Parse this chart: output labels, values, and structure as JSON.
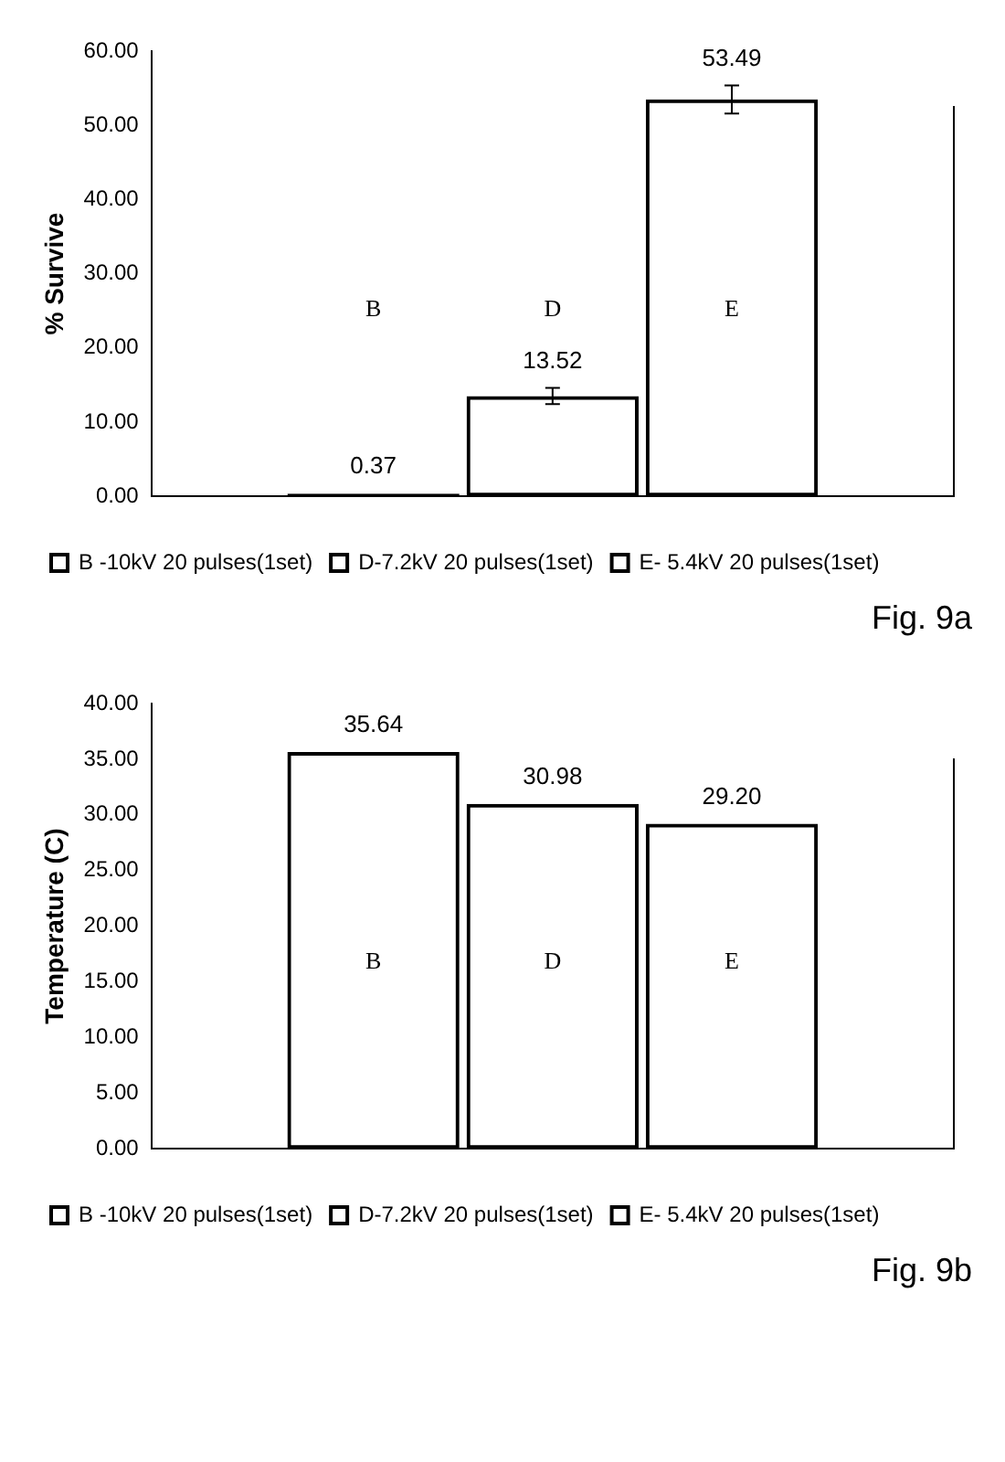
{
  "chart_data": [
    {
      "type": "bar",
      "ylabel": "% Survive",
      "categories": [
        null
      ],
      "series": [
        {
          "name": "B -10kV 20 pulses(1set)",
          "color": "#000000",
          "values": [
            0.37
          ],
          "errors": [
            null
          ],
          "value_labels": [
            "0.37"
          ]
        },
        {
          "name": "D-7.2kV 20 pulses(1set)",
          "color": "#000000",
          "values": [
            13.52
          ],
          "errors": [
            1.1
          ],
          "value_labels": [
            "13.52"
          ]
        },
        {
          "name": "E- 5.4kV 20 pulses(1set)",
          "color": "#000000",
          "values": [
            53.49
          ],
          "errors": [
            1.9
          ],
          "value_labels": [
            "53.49"
          ]
        }
      ],
      "ylim": [
        0,
        60
      ],
      "yticks": [
        {
          "value": 0,
          "label": "0.00"
        },
        {
          "value": 10,
          "label": "10.00"
        },
        {
          "value": 20,
          "label": "20.00"
        },
        {
          "value": 30,
          "label": "30.00"
        },
        {
          "value": 40,
          "label": "40.00"
        },
        {
          "value": 50,
          "label": "50.00"
        },
        {
          "value": 60,
          "label": "60.00"
        }
      ],
      "grid": false,
      "legend": "bottom",
      "annotations": [
        "B",
        "D",
        "E",
        "Fig. 9a"
      ]
    },
    {
      "type": "bar",
      "ylabel": "Temperature (C)",
      "categories": [
        null
      ],
      "series": [
        {
          "name": "B -10kV 20 pulses(1set)",
          "color": "#000000",
          "values": [
            35.64
          ],
          "value_labels": [
            "35.64"
          ]
        },
        {
          "name": "D-7.2kV 20 pulses(1set)",
          "color": "#000000",
          "values": [
            30.98
          ],
          "value_labels": [
            "30.98"
          ]
        },
        {
          "name": "E- 5.4kV 20 pulses(1set)",
          "color": "#000000",
          "values": [
            29.2
          ],
          "value_labels": [
            "29.20"
          ]
        }
      ],
      "ylim": [
        0,
        40
      ],
      "yticks": [
        {
          "value": 0,
          "label": "0.00"
        },
        {
          "value": 5,
          "label": "5.00"
        },
        {
          "value": 10,
          "label": "10.00"
        },
        {
          "value": 15,
          "label": "15.00"
        },
        {
          "value": 20,
          "label": "20.00"
        },
        {
          "value": 25,
          "label": "25.00"
        },
        {
          "value": 30,
          "label": "30.00"
        },
        {
          "value": 35,
          "label": "35.00"
        },
        {
          "value": 40,
          "label": "40.00"
        }
      ],
      "grid": false,
      "legend": "bottom",
      "annotations": [
        "B",
        "D",
        "E",
        "Fig. 9b"
      ]
    }
  ]
}
